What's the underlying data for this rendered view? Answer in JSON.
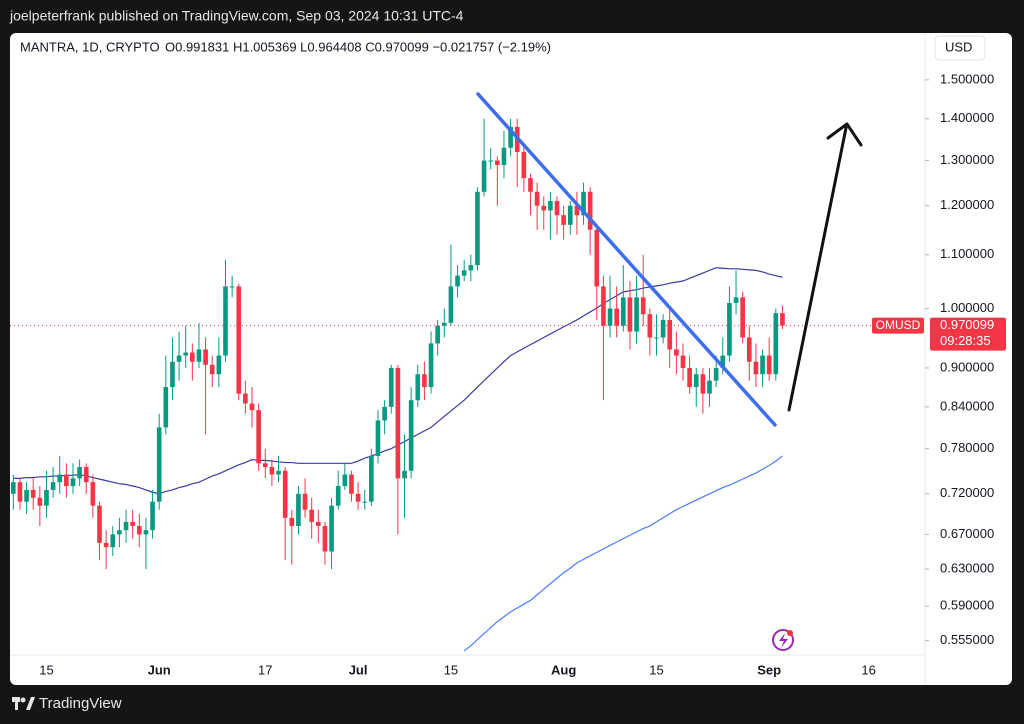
{
  "published": "joelpeterfrank published on TradingView.com, Sep 03, 2024 10:31 UTC-4",
  "brand": "TradingView",
  "chart_data": {
    "type": "candlestick",
    "symbol": "MANTRA, 1D, CRYPTO",
    "ohlc_text": "O0.991831 H1.005369 L0.964408 C0.970099 −0.021757 (−2.19%)",
    "currency": "USD",
    "ticker_tag": "OMUSD",
    "last_price": {
      "value": 0.970099,
      "label": "0.970099"
    },
    "countdown": "09:28:35",
    "log_scale": true,
    "up_color": "#089981",
    "down_color": "#f23645",
    "ylim": [
      0.541,
      1.63
    ],
    "yticks": [
      {
        "value": 1.5,
        "label": "1.500000"
      },
      {
        "value": 1.4,
        "label": "1.400000"
      },
      {
        "value": 1.3,
        "label": "1.300000"
      },
      {
        "value": 1.2,
        "label": "1.200000"
      },
      {
        "value": 1.1,
        "label": "1.100000"
      },
      {
        "value": 1.0,
        "label": "1.000000"
      },
      {
        "value": 0.9,
        "label": "0.900000"
      },
      {
        "value": 0.84,
        "label": "0.840000"
      },
      {
        "value": 0.78,
        "label": "0.780000"
      },
      {
        "value": 0.72,
        "label": "0.720000"
      },
      {
        "value": 0.67,
        "label": "0.670000"
      },
      {
        "value": 0.63,
        "label": "0.630000"
      },
      {
        "value": 0.59,
        "label": "0.590000"
      },
      {
        "value": 0.555,
        "label": "0.555000"
      }
    ],
    "categories": [
      null,
      null,
      null,
      null,
      null,
      "15",
      null,
      null,
      null,
      null,
      null,
      null,
      null,
      null,
      null,
      null,
      null,
      null,
      null,
      null,
      null,
      null,
      "Jun",
      null,
      null,
      null,
      null,
      null,
      null,
      null,
      null,
      null,
      null,
      null,
      null,
      null,
      null,
      null,
      "17",
      null,
      null,
      null,
      null,
      null,
      null,
      null,
      null,
      null,
      null,
      null,
      null,
      null,
      "Jul",
      null,
      null,
      null,
      null,
      null,
      null,
      null,
      null,
      null,
      null,
      null,
      null,
      null,
      "15",
      null,
      null,
      null,
      null,
      null,
      null,
      null,
      null,
      null,
      null,
      null,
      null,
      null,
      null,
      null,
      null,
      "Aug",
      null,
      null,
      null,
      null,
      null,
      null,
      null,
      null,
      null,
      null,
      null,
      null,
      null,
      "15",
      null,
      null,
      null,
      null,
      null,
      null,
      null,
      null,
      null,
      null,
      null,
      null,
      null,
      null,
      null,
      null,
      "Sep",
      null,
      null,
      null,
      null,
      null,
      null,
      null,
      null,
      null,
      null,
      null,
      null,
      null,
      null,
      "16",
      null,
      null,
      null,
      null,
      null,
      null,
      null,
      null
    ],
    "open": [
      0.72,
      0.735,
      0.71,
      0.725,
      0.715,
      0.705,
      0.725,
      0.735,
      0.745,
      0.73,
      0.74,
      0.755,
      0.735,
      0.705,
      0.66,
      0.655,
      0.67,
      0.675,
      0.685,
      0.68,
      0.67,
      0.675,
      0.71,
      0.81,
      0.87,
      0.91,
      0.92,
      0.925,
      0.91,
      0.93,
      0.905,
      0.89,
      0.92,
      1.04,
      1.04,
      0.86,
      0.845,
      0.835,
      0.76,
      0.755,
      0.745,
      0.75,
      0.69,
      0.68,
      0.72,
      0.7,
      0.685,
      0.68,
      0.65,
      0.705,
      0.73,
      0.745,
      0.72,
      0.71,
      0.71,
      0.77,
      0.82,
      0.84,
      0.9,
      0.74,
      0.75,
      0.85,
      0.89,
      0.87,
      0.94,
      0.97,
      0.975,
      1.04,
      1.06,
      1.07,
      1.08,
      1.23,
      1.3,
      1.3,
      1.29,
      1.33,
      1.38,
      1.32,
      1.26,
      1.23,
      1.2,
      1.19,
      1.21,
      1.18,
      1.16,
      1.2,
      1.18,
      1.23,
      1.15,
      1.04,
      0.97,
      1.0,
      0.97,
      1.02,
      0.96,
      1.02,
      0.99,
      0.95,
      0.95,
      0.98,
      0.93,
      0.92,
      0.9,
      0.87,
      0.89,
      0.86,
      0.88,
      0.9,
      0.92,
      1.01,
      1.02,
      0.95,
      0.91,
      0.89,
      0.92,
      0.89,
      0.991831,
      null,
      null,
      null,
      null,
      null,
      null,
      null,
      null,
      null,
      null,
      null,
      null,
      null,
      null,
      null,
      null,
      null,
      null,
      null,
      null,
      null
    ],
    "high": [
      0.745,
      0.74,
      0.735,
      0.74,
      0.73,
      0.75,
      0.755,
      0.77,
      0.76,
      0.76,
      0.765,
      0.76,
      0.745,
      0.71,
      0.675,
      0.68,
      0.69,
      0.7,
      0.7,
      0.695,
      0.69,
      0.725,
      0.83,
      0.92,
      0.95,
      0.96,
      0.97,
      0.94,
      0.975,
      0.95,
      0.92,
      0.95,
      1.09,
      1.06,
      1.045,
      0.88,
      0.87,
      0.845,
      0.78,
      0.765,
      0.77,
      0.755,
      0.7,
      0.73,
      0.74,
      0.715,
      0.7,
      0.685,
      0.715,
      0.75,
      0.76,
      0.75,
      0.735,
      0.725,
      0.78,
      0.835,
      0.85,
      0.905,
      0.905,
      0.8,
      0.87,
      0.905,
      0.91,
      0.96,
      0.98,
      1.0,
      1.12,
      1.08,
      1.09,
      1.1,
      1.24,
      1.4,
      1.33,
      1.31,
      1.37,
      1.4,
      1.4,
      1.34,
      1.27,
      1.25,
      1.22,
      1.23,
      1.22,
      1.2,
      1.21,
      1.23,
      1.25,
      1.24,
      1.16,
      1.06,
      1.06,
      1.04,
      1.08,
      1.05,
      1.06,
      1.1,
      1.0,
      0.99,
      0.99,
      1.0,
      0.96,
      0.94,
      0.92,
      0.9,
      0.9,
      0.9,
      0.92,
      0.95,
      1.04,
      1.07,
      1.03,
      0.97,
      0.94,
      0.93,
      0.95,
      1.0,
      1.005369,
      null,
      null,
      null,
      null,
      null,
      null,
      null,
      null,
      null,
      null,
      null,
      null,
      null,
      null,
      null,
      null,
      null,
      null,
      null,
      null,
      null
    ],
    "low": [
      0.7,
      0.7,
      0.695,
      0.7,
      0.68,
      0.69,
      0.715,
      0.72,
      0.715,
      0.72,
      0.73,
      0.72,
      0.69,
      0.64,
      0.63,
      0.645,
      0.655,
      0.66,
      0.665,
      0.655,
      0.63,
      0.665,
      0.7,
      0.8,
      0.85,
      0.88,
      0.9,
      0.88,
      0.9,
      0.8,
      0.87,
      0.87,
      0.91,
      1.02,
      0.85,
      0.83,
      0.81,
      0.75,
      0.74,
      0.73,
      0.735,
      0.64,
      0.635,
      0.67,
      0.69,
      0.665,
      0.66,
      0.635,
      0.63,
      0.7,
      0.725,
      0.71,
      0.7,
      0.7,
      0.705,
      0.76,
      0.8,
      0.83,
      0.67,
      0.69,
      0.74,
      0.84,
      0.85,
      0.86,
      0.92,
      0.95,
      0.97,
      1.02,
      1.05,
      1.05,
      1.07,
      1.22,
      1.28,
      1.2,
      1.26,
      1.31,
      1.24,
      1.23,
      1.18,
      1.15,
      1.15,
      1.13,
      1.14,
      1.13,
      1.14,
      1.14,
      1.16,
      1.1,
      0.98,
      0.85,
      0.95,
      0.95,
      0.96,
      0.93,
      0.94,
      0.97,
      0.92,
      0.92,
      0.94,
      0.9,
      0.89,
      0.88,
      0.86,
      0.84,
      0.83,
      0.84,
      0.87,
      0.89,
      0.91,
      0.99,
      0.94,
      0.88,
      0.87,
      0.87,
      0.88,
      0.88,
      0.964408,
      null,
      null,
      null,
      null,
      null,
      null,
      null,
      null,
      null,
      null,
      null,
      null,
      null,
      null,
      null,
      null,
      null,
      null,
      null,
      null,
      null
    ],
    "close": [
      0.735,
      0.71,
      0.725,
      0.715,
      0.705,
      0.725,
      0.735,
      0.745,
      0.73,
      0.74,
      0.755,
      0.735,
      0.705,
      0.66,
      0.655,
      0.67,
      0.675,
      0.685,
      0.68,
      0.67,
      0.675,
      0.71,
      0.81,
      0.87,
      0.91,
      0.92,
      0.925,
      0.91,
      0.93,
      0.905,
      0.89,
      0.92,
      1.04,
      1.04,
      0.86,
      0.845,
      0.835,
      0.76,
      0.755,
      0.745,
      0.75,
      0.69,
      0.68,
      0.72,
      0.7,
      0.685,
      0.68,
      0.65,
      0.705,
      0.73,
      0.745,
      0.72,
      0.71,
      0.71,
      0.77,
      0.82,
      0.84,
      0.9,
      0.74,
      0.75,
      0.85,
      0.89,
      0.87,
      0.94,
      0.97,
      0.975,
      1.04,
      1.06,
      1.07,
      1.08,
      1.23,
      1.3,
      1.3,
      1.29,
      1.33,
      1.38,
      1.32,
      1.26,
      1.23,
      1.2,
      1.19,
      1.21,
      1.18,
      1.16,
      1.2,
      1.18,
      1.23,
      1.15,
      1.04,
      0.97,
      1.0,
      0.97,
      1.02,
      0.96,
      1.02,
      0.99,
      0.95,
      0.95,
      0.98,
      0.93,
      0.92,
      0.9,
      0.87,
      0.89,
      0.86,
      0.88,
      0.9,
      0.92,
      1.01,
      1.02,
      0.95,
      0.91,
      0.89,
      0.92,
      0.89,
      0.991831,
      0.970099,
      null,
      null,
      null,
      null,
      null,
      null,
      null,
      null,
      null,
      null,
      null,
      null,
      null,
      null,
      null,
      null,
      null,
      null,
      null,
      null,
      null
    ],
    "series": [
      {
        "color": "#3a3aa8",
        "values": [
          0.74,
          0.74,
          0.741,
          0.741,
          0.742,
          0.742,
          0.743,
          0.743,
          0.744,
          0.744,
          0.745,
          0.743,
          0.741,
          0.739,
          0.737,
          0.735,
          0.733,
          0.732,
          0.73,
          0.728,
          0.725,
          0.722,
          0.72,
          0.723,
          0.725,
          0.728,
          0.73,
          0.733,
          0.735,
          0.739,
          0.743,
          0.746,
          0.75,
          0.754,
          0.758,
          0.761,
          0.765,
          0.764,
          0.764,
          0.763,
          0.762,
          0.761,
          0.761,
          0.76,
          0.76,
          0.76,
          0.76,
          0.76,
          0.76,
          0.76,
          0.76,
          0.76,
          0.763,
          0.767,
          0.77,
          0.773,
          0.777,
          0.78,
          0.785,
          0.79,
          0.795,
          0.8,
          0.805,
          0.81,
          0.818,
          0.826,
          0.834,
          0.842,
          0.85,
          0.86,
          0.87,
          0.88,
          0.89,
          0.9,
          0.91,
          0.92,
          0.926,
          0.932,
          0.938,
          0.944,
          0.95,
          0.956,
          0.962,
          0.968,
          0.974,
          0.98,
          0.987,
          0.994,
          1.001,
          1.009,
          1.016,
          1.023,
          1.03,
          1.032,
          1.034,
          1.037,
          1.039,
          1.041,
          1.043,
          1.046,
          1.048,
          1.05,
          1.055,
          1.06,
          1.065,
          1.07,
          1.075,
          1.074,
          1.073,
          1.073,
          1.072,
          1.071,
          1.07,
          1.067,
          1.063,
          1.06,
          1.057,
          null,
          null,
          null,
          null,
          null,
          null,
          null,
          null,
          null,
          null,
          null,
          null,
          null,
          null,
          null,
          null,
          null,
          null,
          null,
          null,
          null
        ]
      },
      {
        "color": "#4d7cfe",
        "values": [
          null,
          null,
          null,
          null,
          null,
          null,
          null,
          null,
          null,
          null,
          null,
          null,
          null,
          null,
          null,
          null,
          null,
          null,
          null,
          null,
          null,
          null,
          null,
          null,
          null,
          null,
          null,
          null,
          null,
          null,
          null,
          null,
          null,
          null,
          null,
          null,
          null,
          null,
          null,
          null,
          null,
          null,
          null,
          null,
          null,
          null,
          null,
          null,
          null,
          null,
          null,
          null,
          null,
          null,
          null,
          null,
          null,
          null,
          null,
          null,
          null,
          null,
          null,
          null,
          null,
          null,
          null,
          null,
          0.545,
          0.55,
          0.556,
          0.562,
          0.568,
          0.574,
          0.579,
          0.584,
          0.588,
          0.592,
          0.596,
          0.602,
          0.608,
          0.614,
          0.62,
          0.626,
          0.631,
          0.637,
          0.641,
          0.645,
          0.649,
          0.653,
          0.657,
          0.661,
          0.665,
          0.669,
          0.673,
          0.677,
          0.68,
          0.685,
          0.69,
          0.695,
          0.7,
          0.704,
          0.708,
          0.712,
          0.716,
          0.72,
          0.724,
          0.728,
          0.731,
          0.735,
          0.739,
          0.743,
          0.747,
          0.752,
          0.757,
          0.763,
          0.77,
          null,
          null,
          null,
          null,
          null,
          null,
          null,
          null,
          null,
          null,
          null,
          null,
          null,
          null,
          null,
          null,
          null,
          null,
          null,
          null,
          null
        ]
      }
    ]
  }
}
